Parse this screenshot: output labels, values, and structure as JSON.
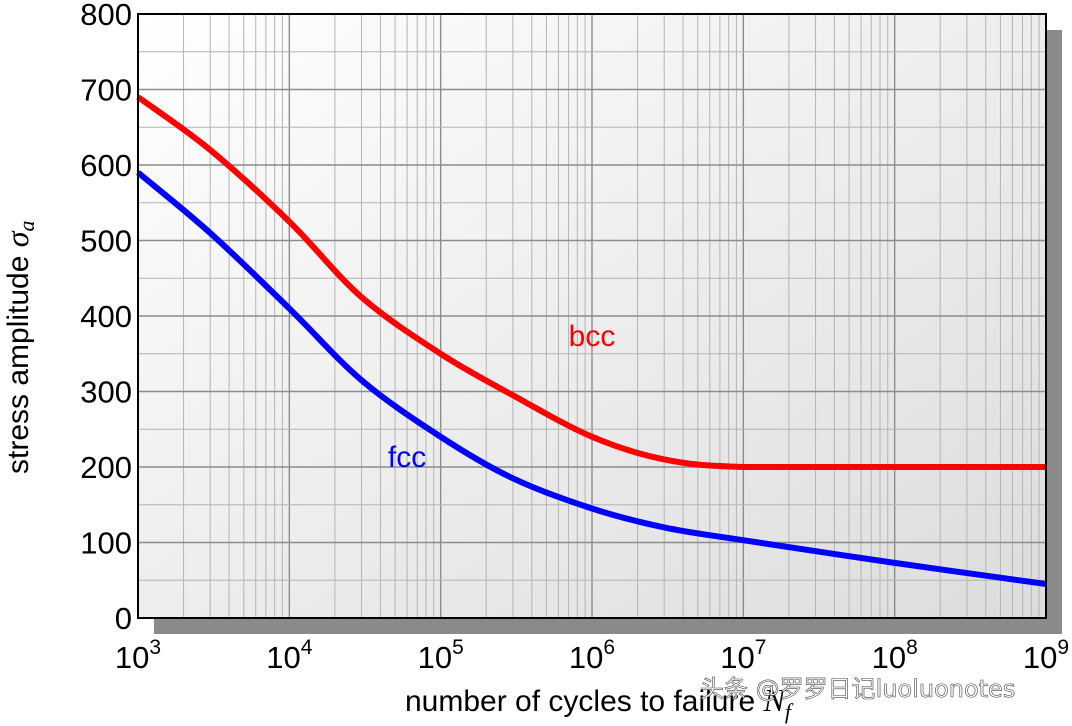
{
  "chart_data": {
    "type": "line",
    "title": "",
    "xlabel": "number of cycles to failure",
    "xlabel_symbol": "N",
    "xlabel_subscript": "f",
    "ylabel": "stress amplitude",
    "ylabel_symbol": "σ",
    "ylabel_subscript": "a",
    "xscale": "log",
    "xlim": [
      1000,
      1000000000
    ],
    "ylim": [
      0,
      800
    ],
    "grid": true,
    "x_ticks": [
      {
        "base": "10",
        "exp": "3",
        "value": 1000
      },
      {
        "base": "10",
        "exp": "4",
        "value": 10000
      },
      {
        "base": "10",
        "exp": "5",
        "value": 100000
      },
      {
        "base": "10",
        "exp": "6",
        "value": 1000000
      },
      {
        "base": "10",
        "exp": "7",
        "value": 10000000
      },
      {
        "base": "10",
        "exp": "8",
        "value": 100000000
      },
      {
        "base": "10",
        "exp": "9",
        "value": 1000000000
      }
    ],
    "y_ticks": [
      "0",
      "100",
      "200",
      "300",
      "400",
      "500",
      "600",
      "700",
      "800"
    ],
    "series": [
      {
        "name": "bcc",
        "color": "#ff0000",
        "label_at": [
          1000000,
          360
        ],
        "x": [
          1000,
          3000,
          10000,
          30000,
          100000,
          300000,
          1000000,
          3000000,
          10000000,
          100000000,
          1000000000
        ],
        "y": [
          690,
          620,
          525,
          425,
          350,
          295,
          240,
          210,
          200,
          200,
          200
        ]
      },
      {
        "name": "fcc",
        "color": "#0000ff",
        "label_at": [
          60000,
          200
        ],
        "x": [
          1000,
          3000,
          10000,
          30000,
          100000,
          300000,
          1000000,
          3000000,
          10000000,
          100000000,
          1000000000
        ],
        "y": [
          590,
          510,
          410,
          315,
          240,
          185,
          145,
          120,
          103,
          73,
          45
        ]
      }
    ]
  },
  "watermark": "头条 @罗罗日记luoluonotes"
}
